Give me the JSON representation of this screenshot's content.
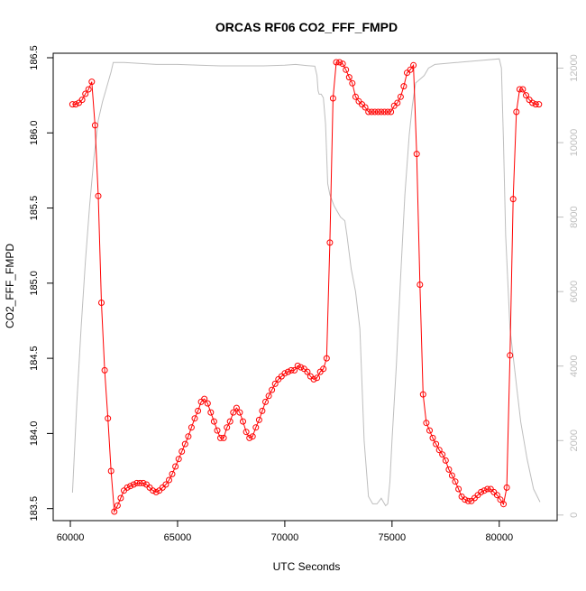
{
  "chart_data": {
    "type": "line",
    "title": "ORCAS RF06 CO2_FFF_FMPD",
    "xlabel": "UTC Seconds",
    "ylabel": "CO2_FFF_FMPD",
    "xlim": [
      59200,
      82700
    ],
    "ylim": [
      183.42,
      186.53
    ],
    "y2lim": [
      -150,
      12400
    ],
    "grid": false,
    "x_ticks": [
      60000,
      65000,
      70000,
      75000,
      80000
    ],
    "y_ticks": [
      183.5,
      184.0,
      184.5,
      185.0,
      185.5,
      186.0,
      186.5
    ],
    "y2_ticks": [
      0,
      2000,
      4000,
      6000,
      8000,
      10000,
      12000
    ],
    "colors": {
      "co2": "#ff0000",
      "altitude": "#bebebe",
      "axis": "#000000",
      "right_axis": "#bebebe"
    },
    "series": [
      {
        "axis": "left",
        "style": "points-line",
        "x": [
          60100,
          60250,
          60400,
          60550,
          60700,
          60850,
          61000,
          61150,
          61300,
          61450,
          61600,
          61750,
          61900,
          62050,
          62200,
          62350,
          62500,
          62650,
          62800,
          62950,
          63100,
          63250,
          63400,
          63550,
          63700,
          63850,
          64000,
          64150,
          64300,
          64450,
          64600,
          64750,
          64900,
          65050,
          65200,
          65350,
          65500,
          65650,
          65800,
          65950,
          66100,
          66250,
          66400,
          66550,
          66700,
          66850,
          67000,
          67150,
          67300,
          67450,
          67600,
          67750,
          67900,
          68050,
          68200,
          68350,
          68500,
          68650,
          68800,
          68950,
          69100,
          69250,
          69400,
          69550,
          69700,
          69850,
          70000,
          70150,
          70300,
          70450,
          70600,
          70750,
          70900,
          71050,
          71200,
          71350,
          71500,
          71650,
          71800,
          71950,
          72100,
          72250,
          72400,
          72550,
          72700,
          72850,
          73000,
          73150,
          73300,
          73450,
          73600,
          73750,
          73900,
          74050,
          74200,
          74350,
          74500,
          74650,
          74800,
          74950,
          75100,
          75250,
          75400,
          75550,
          75700,
          75850,
          76000,
          76150,
          76300,
          76450,
          76600,
          76750,
          76900,
          77050,
          77200,
          77350,
          77500,
          77650,
          77800,
          77950,
          78100,
          78250,
          78400,
          78550,
          78700,
          78850,
          79000,
          79150,
          79300,
          79450,
          79600,
          79750,
          79900,
          80050,
          80200,
          80350,
          80500,
          80650,
          80800,
          80950,
          81100,
          81250,
          81400,
          81550,
          81700,
          81850
        ],
        "y": [
          186.19,
          186.19,
          186.2,
          186.22,
          186.26,
          186.29,
          186.34,
          186.05,
          185.58,
          184.87,
          184.42,
          184.1,
          183.75,
          183.48,
          183.52,
          183.57,
          183.62,
          183.64,
          183.65,
          183.66,
          183.67,
          183.67,
          183.67,
          183.66,
          183.64,
          183.62,
          183.61,
          183.62,
          183.64,
          183.66,
          183.69,
          183.73,
          183.78,
          183.83,
          183.88,
          183.93,
          183.98,
          184.04,
          184.1,
          184.15,
          184.21,
          184.23,
          184.2,
          184.14,
          184.08,
          184.02,
          183.97,
          183.97,
          184.04,
          184.08,
          184.14,
          184.17,
          184.14,
          184.08,
          184.01,
          183.97,
          183.98,
          184.04,
          184.09,
          184.15,
          184.21,
          184.25,
          184.29,
          184.33,
          184.36,
          184.38,
          184.4,
          184.41,
          184.42,
          184.42,
          184.45,
          184.44,
          184.43,
          184.41,
          184.38,
          184.36,
          184.37,
          184.41,
          184.43,
          184.5,
          185.27,
          186.23,
          186.47,
          186.47,
          186.46,
          186.42,
          186.37,
          186.33,
          186.24,
          186.21,
          186.19,
          186.17,
          186.14,
          186.14,
          186.14,
          186.14,
          186.14,
          186.14,
          186.14,
          186.14,
          186.18,
          186.2,
          186.24,
          186.31,
          186.4,
          186.42,
          186.45,
          185.86,
          184.99,
          184.26,
          184.07,
          184.02,
          183.97,
          183.93,
          183.89,
          183.86,
          183.82,
          183.76,
          183.72,
          183.68,
          183.63,
          183.58,
          183.56,
          183.55,
          183.55,
          183.57,
          183.59,
          183.61,
          183.62,
          183.63,
          183.63,
          183.61,
          183.59,
          183.56,
          183.53,
          183.64,
          184.52,
          185.56,
          186.14,
          186.29,
          186.29,
          186.25,
          186.22,
          186.2,
          186.19,
          186.19
        ]
      },
      {
        "axis": "right",
        "style": "line",
        "x": [
          60100,
          60300,
          60500,
          60700,
          60900,
          61100,
          61300,
          61500,
          61700,
          61900,
          62000,
          62500,
          64000,
          65000,
          66000,
          67000,
          68000,
          69000,
          70000,
          70500,
          71000,
          71400,
          71500,
          71550,
          71600,
          71700,
          71800,
          71900,
          72000,
          72100,
          72300,
          72400,
          72600,
          72800,
          72900,
          73100,
          73300,
          73500,
          73700,
          73900,
          74100,
          74300,
          74500,
          74700,
          74800,
          74900,
          75000,
          75200,
          75400,
          75600,
          75800,
          75950,
          76100,
          76300,
          76500,
          76700,
          77000,
          78000,
          79000,
          80000,
          80100,
          80200,
          80300,
          80500,
          80800,
          81000,
          81300,
          81600,
          81900
        ],
        "y": [
          600,
          3000,
          5000,
          6800,
          8300,
          9600,
          10600,
          11100,
          11500,
          11900,
          12150,
          12150,
          12100,
          12100,
          12080,
          12060,
          12060,
          12060,
          12080,
          12100,
          12070,
          12050,
          11800,
          11400,
          11300,
          11300,
          11200,
          10500,
          8900,
          8600,
          8300,
          8200,
          8000,
          7900,
          7500,
          6600,
          6000,
          5000,
          2000,
          500,
          300,
          300,
          450,
          250,
          300,
          900,
          2000,
          4000,
          6400,
          8600,
          10200,
          11000,
          11600,
          11700,
          11800,
          12000,
          12100,
          12150,
          12200,
          12250,
          12000,
          10000,
          7500,
          5000,
          3500,
          2500,
          1500,
          700,
          350
        ]
      }
    ]
  }
}
